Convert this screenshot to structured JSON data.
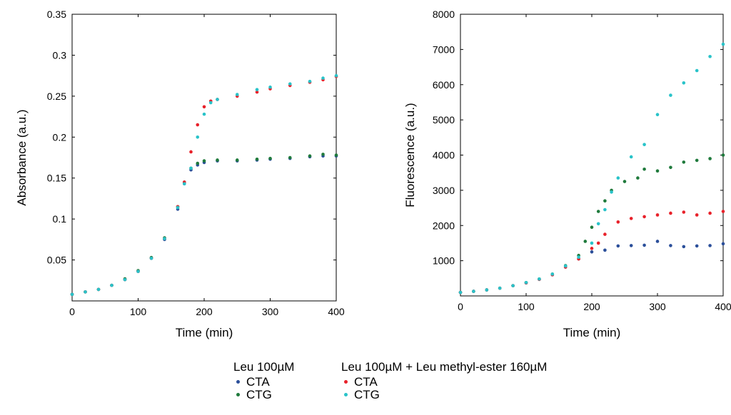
{
  "colors": {
    "leu_cta": "#2b4f9a",
    "leu_ctg": "#1f7a3c",
    "ester_cta": "#e8212a",
    "ester_ctg": "#29c3c9"
  },
  "legend": {
    "group1_title": "Leu 100µM",
    "group1_items": [
      "CTA",
      "CTG"
    ],
    "group2_title": "Leu 100µM + Leu methyl-ester 160µM",
    "group2_items": [
      "CTA",
      "CTG"
    ]
  },
  "chart_data": [
    {
      "type": "scatter",
      "title": "",
      "xlabel": "Time (min)",
      "ylabel": "Absorbance (a.u.)",
      "xlim": [
        0,
        400
      ],
      "ylim": [
        0,
        0.35
      ],
      "xticks": [
        "0",
        "100",
        "200",
        "300",
        "400"
      ],
      "yticks": [
        "0.05",
        "0.1",
        "0.15",
        "0.2",
        "0.25",
        "0.3",
        "0.35"
      ],
      "grid": false,
      "legend_position": "below",
      "series": [
        {
          "group": "Leu 100µM",
          "name": "CTA",
          "color_key": "leu_cta",
          "x": [
            0,
            20,
            40,
            60,
            80,
            100,
            120,
            140,
            160,
            170,
            180,
            190,
            200,
            220,
            250,
            280,
            300,
            330,
            360,
            380,
            400
          ],
          "y": [
            0.008,
            0.011,
            0.014,
            0.019,
            0.026,
            0.036,
            0.052,
            0.075,
            0.112,
            0.143,
            0.16,
            0.166,
            0.169,
            0.171,
            0.171,
            0.172,
            0.173,
            0.174,
            0.176,
            0.177,
            0.177
          ]
        },
        {
          "group": "Leu 100µM",
          "name": "CTG",
          "color_key": "leu_ctg",
          "x": [
            0,
            20,
            40,
            60,
            80,
            100,
            120,
            140,
            160,
            170,
            180,
            190,
            200,
            220,
            250,
            280,
            300,
            330,
            360,
            380,
            400
          ],
          "y": [
            0.008,
            0.011,
            0.014,
            0.019,
            0.027,
            0.037,
            0.053,
            0.077,
            0.115,
            0.145,
            0.162,
            0.168,
            0.171,
            0.172,
            0.172,
            0.173,
            0.174,
            0.175,
            0.177,
            0.179,
            0.178
          ]
        },
        {
          "group": "Leu 100µM + Leu methyl-ester 160µM",
          "name": "CTA",
          "color_key": "ester_cta",
          "x": [
            0,
            20,
            40,
            60,
            80,
            100,
            120,
            140,
            160,
            170,
            180,
            190,
            200,
            210,
            220,
            250,
            280,
            300,
            330,
            360,
            380,
            400
          ],
          "y": [
            0.008,
            0.011,
            0.014,
            0.019,
            0.026,
            0.036,
            0.052,
            0.076,
            0.115,
            0.145,
            0.182,
            0.215,
            0.237,
            0.244,
            0.246,
            0.25,
            0.255,
            0.259,
            0.263,
            0.267,
            0.27,
            0.274
          ]
        },
        {
          "group": "Leu 100µM + Leu methyl-ester 160µM",
          "name": "CTG",
          "color_key": "ester_ctg",
          "x": [
            0,
            20,
            40,
            60,
            80,
            100,
            120,
            140,
            160,
            170,
            180,
            190,
            200,
            210,
            220,
            250,
            280,
            300,
            330,
            360,
            380,
            400
          ],
          "y": [
            0.008,
            0.011,
            0.014,
            0.019,
            0.026,
            0.036,
            0.052,
            0.076,
            0.114,
            0.143,
            0.162,
            0.2,
            0.228,
            0.242,
            0.246,
            0.252,
            0.258,
            0.261,
            0.265,
            0.268,
            0.272,
            0.275
          ]
        }
      ]
    },
    {
      "type": "scatter",
      "title": "",
      "xlabel": "Time (min)",
      "ylabel": "Fluorescence (a.u.)",
      "xlim": [
        0,
        400
      ],
      "ylim": [
        0,
        8000
      ],
      "xticks": [
        "0",
        "100",
        "200",
        "300",
        "400"
      ],
      "yticks": [
        "1000",
        "2000",
        "3000",
        "4000",
        "5000",
        "6000",
        "7000",
        "8000"
      ],
      "grid": false,
      "legend_position": "below",
      "series": [
        {
          "group": "Leu 100µM",
          "name": "CTA",
          "color_key": "leu_cta",
          "x": [
            0,
            20,
            40,
            60,
            80,
            100,
            120,
            140,
            160,
            180,
            200,
            220,
            240,
            260,
            280,
            300,
            320,
            340,
            360,
            380,
            400
          ],
          "y": [
            100,
            130,
            170,
            220,
            290,
            370,
            470,
            600,
            820,
            1050,
            1250,
            1300,
            1420,
            1430,
            1440,
            1550,
            1430,
            1400,
            1420,
            1430,
            1480
          ]
        },
        {
          "group": "Leu 100µM",
          "name": "CTG",
          "color_key": "leu_ctg",
          "x": [
            0,
            20,
            40,
            60,
            80,
            100,
            120,
            140,
            160,
            180,
            190,
            200,
            210,
            220,
            230,
            250,
            270,
            280,
            300,
            320,
            340,
            360,
            380,
            400
          ],
          "y": [
            100,
            130,
            170,
            220,
            290,
            380,
            480,
            620,
            860,
            1150,
            1550,
            1950,
            2400,
            2700,
            3000,
            3250,
            3350,
            3600,
            3550,
            3650,
            3800,
            3850,
            3900,
            4000
          ]
        },
        {
          "group": "Leu 100µM + Leu methyl-ester 160µM",
          "name": "CTA",
          "color_key": "ester_cta",
          "x": [
            0,
            20,
            40,
            60,
            80,
            100,
            120,
            140,
            160,
            180,
            200,
            210,
            220,
            240,
            260,
            280,
            300,
            320,
            340,
            360,
            380,
            400
          ],
          "y": [
            100,
            130,
            170,
            220,
            290,
            370,
            470,
            600,
            820,
            1050,
            1350,
            1500,
            1750,
            2100,
            2200,
            2250,
            2300,
            2350,
            2380,
            2300,
            2350,
            2400
          ]
        },
        {
          "group": "Leu 100µM + Leu methyl-ester 160µM",
          "name": "CTG",
          "color_key": "ester_ctg",
          "x": [
            0,
            20,
            40,
            60,
            80,
            100,
            120,
            140,
            160,
            180,
            200,
            210,
            220,
            230,
            240,
            260,
            280,
            300,
            320,
            340,
            360,
            380,
            400
          ],
          "y": [
            100,
            130,
            170,
            220,
            290,
            380,
            480,
            620,
            850,
            1100,
            1500,
            2050,
            2450,
            2950,
            3350,
            3950,
            4300,
            5150,
            5700,
            6050,
            6400,
            6800,
            7150
          ]
        }
      ]
    }
  ]
}
